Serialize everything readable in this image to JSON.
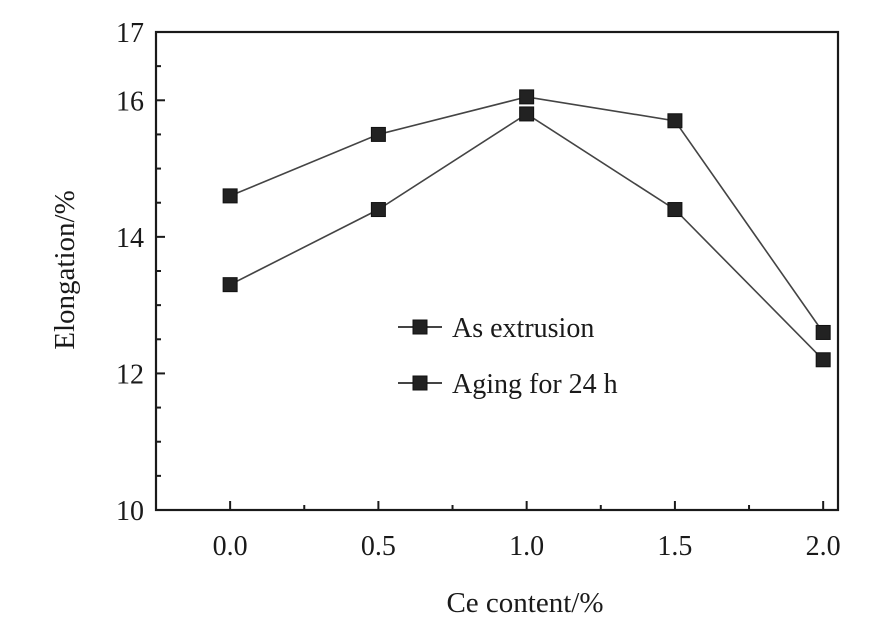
{
  "chart_data": {
    "type": "line",
    "title": "",
    "xlabel": "Ce content/%",
    "ylabel": "Elongation/%",
    "x": [
      0.0,
      0.5,
      1.0,
      1.5,
      2.0
    ],
    "x_tick_labels": [
      "0.0",
      "0.5",
      "1.0",
      "1.5",
      "2.0"
    ],
    "y_tick_labels": [
      "10",
      "12",
      "14",
      "16",
      "17"
    ],
    "xlim": [
      -0.25,
      2.05
    ],
    "ylim": [
      10,
      17
    ],
    "grid": false,
    "legend_position": "center-right",
    "series": [
      {
        "name": "As extrusion",
        "values": [
          14.6,
          15.5,
          16.05,
          15.7,
          12.6
        ]
      },
      {
        "name": "Aging for 24 h",
        "values": [
          13.3,
          14.4,
          15.8,
          14.4,
          12.2
        ]
      }
    ]
  }
}
